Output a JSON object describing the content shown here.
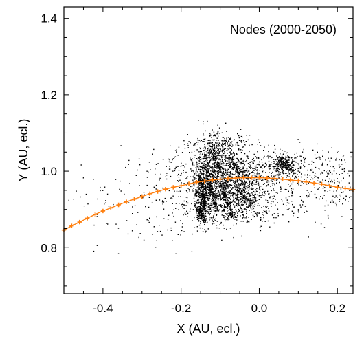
{
  "chart_data": {
    "type": "scatter",
    "title": "",
    "annotation": "Nodes (2000-2050)",
    "xlabel": "X (AU, ecl.)",
    "ylabel": "Y (AU, ecl.)",
    "xlim": [
      -0.5,
      0.24
    ],
    "ylim": [
      0.68,
      1.43
    ],
    "xticks": [
      -0.4,
      -0.2,
      0.0,
      0.2
    ],
    "xtick_labels": [
      "-0.4",
      "-0.2",
      "0.0",
      "0.2"
    ],
    "yticks": [
      0.8,
      1.0,
      1.2,
      1.4
    ],
    "ytick_labels": [
      "0.8",
      "1.0",
      "1.2",
      "1.4"
    ],
    "grid": false,
    "colors": {
      "nodes": "#000000",
      "orbit": "#ff7f0e"
    },
    "series": [
      {
        "kind": "node-clusters",
        "clusters": [
          {
            "center": [
              -0.14,
              0.96
            ],
            "spread": [
              0.012,
              0.045
            ],
            "count": 420
          },
          {
            "center": [
              -0.15,
              0.905
            ],
            "spread": [
              0.008,
              0.02
            ],
            "count": 160
          },
          {
            "center": [
              -0.12,
              1.02
            ],
            "spread": [
              0.025,
              0.04
            ],
            "count": 260
          },
          {
            "center": [
              -0.1,
              0.99
            ],
            "spread": [
              0.04,
              0.05
            ],
            "count": 420
          },
          {
            "center": [
              -0.08,
              0.94
            ],
            "spread": [
              0.035,
              0.04
            ],
            "count": 360
          },
          {
            "center": [
              -0.05,
              0.96
            ],
            "spread": [
              0.05,
              0.045
            ],
            "count": 380
          },
          {
            "center": [
              -0.03,
              1.0
            ],
            "spread": [
              0.04,
              0.03
            ],
            "count": 200
          },
          {
            "center": [
              -0.1,
              1.07
            ],
            "spread": [
              0.035,
              0.015
            ],
            "count": 140
          },
          {
            "center": [
              0.06,
              1.02
            ],
            "spread": [
              0.02,
              0.015
            ],
            "count": 220
          },
          {
            "center": [
              0.12,
              1.0
            ],
            "spread": [
              0.07,
              0.03
            ],
            "count": 240
          },
          {
            "center": [
              0.0,
              0.92
            ],
            "spread": [
              0.06,
              0.03
            ],
            "count": 200
          },
          {
            "center": [
              -0.2,
              0.93
            ],
            "spread": [
              0.05,
              0.06
            ],
            "count": 110
          },
          {
            "center": [
              -0.3,
              0.91
            ],
            "spread": [
              0.14,
              0.06
            ],
            "count": 140
          },
          {
            "center": [
              -0.2,
              1.02
            ],
            "spread": [
              0.06,
              0.03
            ],
            "count": 80
          },
          {
            "center": [
              0.18,
              0.95
            ],
            "spread": [
              0.04,
              0.04
            ],
            "count": 90
          }
        ],
        "streaks": [
          {
            "from": [
              -0.155,
              0.99
            ],
            "to": [
              -0.14,
              0.92
            ],
            "count": 120
          },
          {
            "from": [
              -0.13,
              0.98
            ],
            "to": [
              -0.11,
              0.9
            ],
            "count": 110
          },
          {
            "from": [
              -0.1,
              0.97
            ],
            "to": [
              -0.07,
              0.88
            ],
            "count": 110
          },
          {
            "from": [
              -0.155,
              0.9
            ],
            "to": [
              -0.14,
              0.87
            ],
            "count": 70
          },
          {
            "from": [
              -0.12,
              1.05
            ],
            "to": [
              -0.1,
              1.0
            ],
            "count": 80
          },
          {
            "from": [
              -0.08,
              1.04
            ],
            "to": [
              -0.05,
              0.99
            ],
            "count": 70
          },
          {
            "from": [
              -0.06,
              0.96
            ],
            "to": [
              -0.02,
              0.91
            ],
            "count": 90
          },
          {
            "from": [
              0.05,
              1.03
            ],
            "to": [
              0.09,
              1.0
            ],
            "count": 80
          }
        ]
      },
      {
        "kind": "orbit",
        "x": [
          -0.5,
          -0.48,
          -0.46,
          -0.44,
          -0.42,
          -0.4,
          -0.38,
          -0.36,
          -0.34,
          -0.32,
          -0.3,
          -0.28,
          -0.26,
          -0.24,
          -0.22,
          -0.2,
          -0.18,
          -0.16,
          -0.14,
          -0.12,
          -0.1,
          -0.08,
          -0.06,
          -0.04,
          -0.02,
          0.0,
          0.02,
          0.04,
          0.06,
          0.08,
          0.1,
          0.12,
          0.14,
          0.16,
          0.18,
          0.2,
          0.22,
          0.24
        ],
        "y": [
          0.846,
          0.857,
          0.867,
          0.877,
          0.887,
          0.896,
          0.904,
          0.912,
          0.92,
          0.927,
          0.934,
          0.941,
          0.947,
          0.953,
          0.958,
          0.962,
          0.967,
          0.971,
          0.974,
          0.977,
          0.979,
          0.981,
          0.982,
          0.983,
          0.983,
          0.983,
          0.982,
          0.981,
          0.979,
          0.977,
          0.975,
          0.972,
          0.969,
          0.966,
          0.962,
          0.958,
          0.955,
          0.952
        ]
      }
    ]
  }
}
